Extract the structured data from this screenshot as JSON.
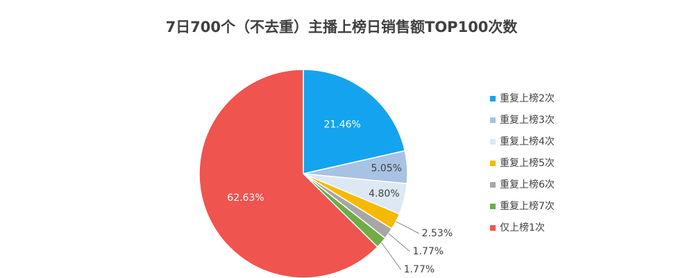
{
  "chart_data": {
    "type": "pie",
    "title": "7日700个（不去重）主播上榜日销售额TOP100次数",
    "categories": [
      "重复上榜2次",
      "重复上榜3次",
      "重复上榜4次",
      "重复上榜5次",
      "重复上榜6次",
      "重复上榜7次",
      "仅上榜1次"
    ],
    "values": [
      21.46,
      5.05,
      4.8,
      2.53,
      1.77,
      1.77,
      62.63
    ],
    "value_labels": [
      "21.46%",
      "5.05%",
      "4.80%",
      "2.53%",
      "1.77%",
      "1.77%",
      "62.63%"
    ],
    "colors": [
      "#14a4ef",
      "#a7c2e3",
      "#dde8f4",
      "#f7b900",
      "#a6a6a6",
      "#6fac46",
      "#f0544f"
    ],
    "legend": "right"
  }
}
